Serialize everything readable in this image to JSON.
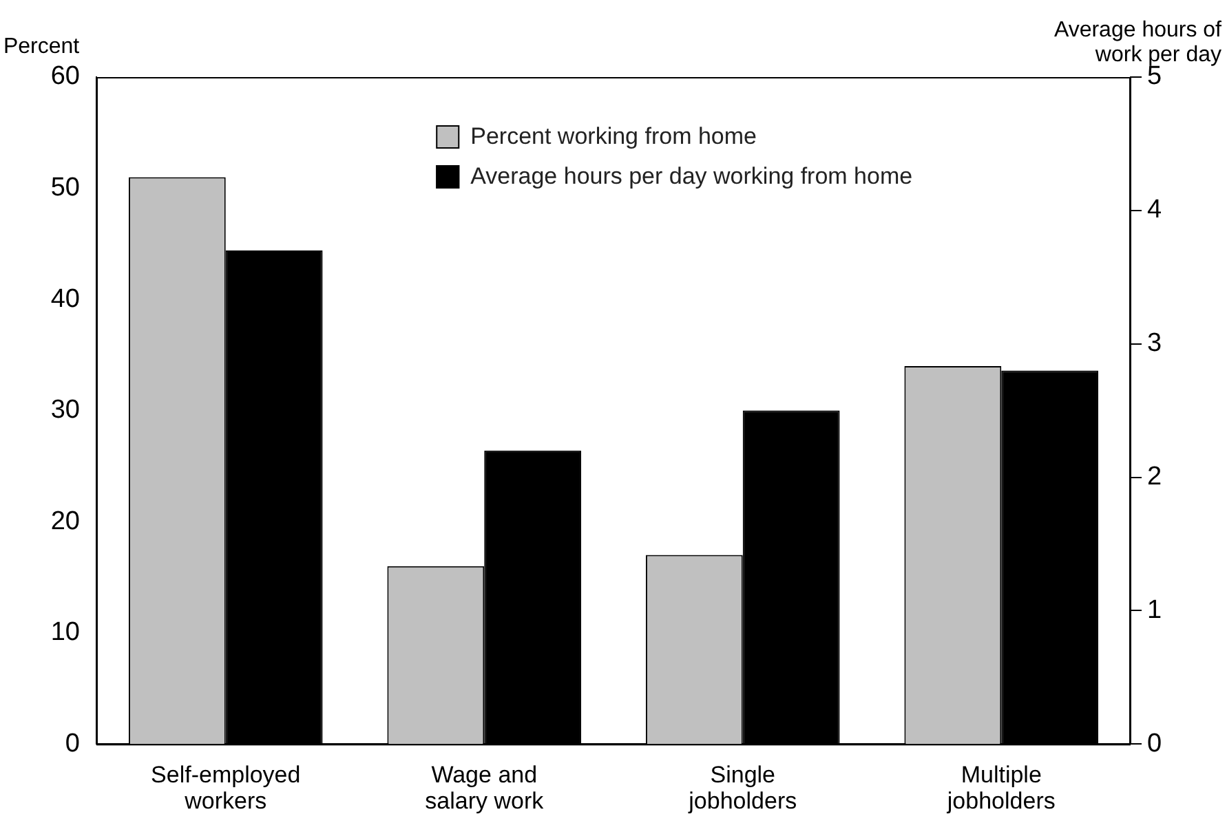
{
  "chart_data": {
    "type": "bar",
    "ylabel": "Percent",
    "y2label": "Average hours of work per day",
    "categories": [
      "Self-employed workers",
      "Wage and salary work",
      "Single jobholders",
      "Multiple jobholders"
    ],
    "series": [
      {
        "name": "Percent working from home",
        "color": "#c0c0c0",
        "values": [
          51,
          16,
          17,
          34
        ]
      },
      {
        "name": "Average hours per day working from home",
        "color": "#000000",
        "axis": "y2",
        "values": [
          3.7,
          2.2,
          2.5,
          2.8
        ]
      }
    ],
    "ylim": [
      0,
      60
    ],
    "yticks": [
      0,
      10,
      20,
      30,
      40,
      50,
      60
    ],
    "y2lim": [
      0,
      5
    ],
    "y2ticks": [
      0,
      1,
      2,
      3,
      4,
      5
    ],
    "grid": false,
    "legend": "top"
  }
}
